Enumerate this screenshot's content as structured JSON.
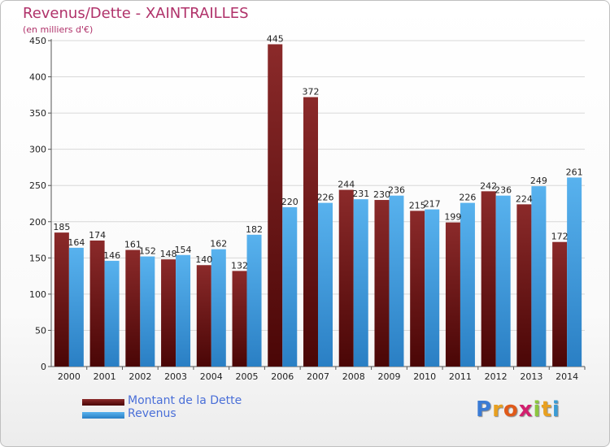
{
  "chart_data": {
    "type": "bar",
    "title": "Revenus/Dette - XAINTRAILLES",
    "subtitle": "(en milliers d'€)",
    "categories": [
      "2000",
      "2001",
      "2002",
      "2003",
      "2004",
      "2005",
      "2006",
      "2007",
      "2008",
      "2009",
      "2010",
      "2011",
      "2012",
      "2013",
      "2014"
    ],
    "series": [
      {
        "name": "Montant de la Dette",
        "color": "#7a1f1f",
        "values": [
          185,
          174,
          161,
          148,
          140,
          132,
          445,
          372,
          244,
          230,
          215,
          199,
          242,
          224,
          172
        ]
      },
      {
        "name": "Revenus",
        "color": "#4aa3e6",
        "values": [
          164,
          146,
          152,
          154,
          162,
          182,
          220,
          226,
          231,
          236,
          217,
          226,
          236,
          249,
          261
        ]
      }
    ],
    "ylim": [
      0,
      450
    ],
    "yticks": [
      0,
      50,
      100,
      150,
      200,
      250,
      300,
      350,
      400,
      450
    ],
    "grid": true,
    "legend_position": "bottom-left"
  },
  "logo": {
    "letters": [
      "P",
      "r",
      "o",
      "x",
      "i",
      "t",
      "i"
    ],
    "colors": [
      "#3a7bd5",
      "#e8a020",
      "#e05a1a",
      "#d21f6e",
      "#8cc63f",
      "#e8a020",
      "#3a9bd5"
    ]
  }
}
